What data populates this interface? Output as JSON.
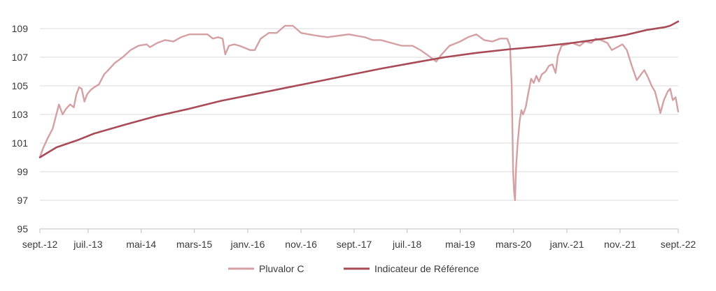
{
  "chart_data": {
    "type": "line",
    "title": "",
    "xlabel": "",
    "ylabel": "",
    "xlim": [
      "2012-09-28",
      "2022-09-30"
    ],
    "ylim": [
      95,
      109
    ],
    "y_ticks": [
      "95",
      "97",
      "99",
      "101",
      "103",
      "105",
      "107",
      "109"
    ],
    "x_ticks": [
      {
        "date": "2012-09-28",
        "label": "sept.-12"
      },
      {
        "date": "2013-07-01",
        "label": "juil.-13"
      },
      {
        "date": "2014-05-01",
        "label": "mai-14"
      },
      {
        "date": "2015-03-01",
        "label": "mars-15"
      },
      {
        "date": "2016-01-01",
        "label": "janv.-16"
      },
      {
        "date": "2016-11-01",
        "label": "nov.-16"
      },
      {
        "date": "2017-09-01",
        "label": "sept.-17"
      },
      {
        "date": "2018-07-01",
        "label": "juil.-18"
      },
      {
        "date": "2019-05-01",
        "label": "mai-19"
      },
      {
        "date": "2020-03-01",
        "label": "mars-20"
      },
      {
        "date": "2021-01-01",
        "label": "janv.-21"
      },
      {
        "date": "2021-11-01",
        "label": "nov.-21"
      },
      {
        "date": "2022-09-30",
        "label": "sept.-22"
      }
    ],
    "grid": "horizontal",
    "legend_position": "bottom",
    "series": [
      {
        "name": "Pluvalor C",
        "color": "#d4a0a4",
        "points": [
          [
            "2012-09-28",
            100.0
          ],
          [
            "2012-10-15",
            100.6
          ],
          [
            "2012-11-10",
            101.3
          ],
          [
            "2012-12-10",
            102.0
          ],
          [
            "2013-01-15",
            103.7
          ],
          [
            "2013-02-05",
            103.0
          ],
          [
            "2013-02-25",
            103.4
          ],
          [
            "2013-03-20",
            103.7
          ],
          [
            "2013-04-10",
            103.5
          ],
          [
            "2013-04-25",
            104.4
          ],
          [
            "2013-05-10",
            104.9
          ],
          [
            "2013-05-25",
            104.8
          ],
          [
            "2013-06-10",
            103.9
          ],
          [
            "2013-06-25",
            104.4
          ],
          [
            "2013-07-15",
            104.7
          ],
          [
            "2013-08-05",
            104.9
          ],
          [
            "2013-09-01",
            105.1
          ],
          [
            "2013-10-01",
            105.8
          ],
          [
            "2013-11-01",
            106.2
          ],
          [
            "2013-12-01",
            106.6
          ],
          [
            "2014-01-15",
            107.0
          ],
          [
            "2014-03-01",
            107.5
          ],
          [
            "2014-04-15",
            107.8
          ],
          [
            "2014-06-01",
            107.9
          ],
          [
            "2014-06-20",
            107.7
          ],
          [
            "2014-08-01",
            108.0
          ],
          [
            "2014-09-15",
            108.2
          ],
          [
            "2014-11-01",
            108.1
          ],
          [
            "2014-12-15",
            108.4
          ],
          [
            "2015-02-01",
            108.6
          ],
          [
            "2015-04-01",
            108.6
          ],
          [
            "2015-05-15",
            108.6
          ],
          [
            "2015-06-15",
            108.3
          ],
          [
            "2015-07-15",
            108.4
          ],
          [
            "2015-08-10",
            108.3
          ],
          [
            "2015-08-25",
            107.2
          ],
          [
            "2015-09-15",
            107.8
          ],
          [
            "2015-10-15",
            107.9
          ],
          [
            "2015-11-15",
            107.8
          ],
          [
            "2016-01-15",
            107.5
          ],
          [
            "2016-02-10",
            107.5
          ],
          [
            "2016-03-15",
            108.3
          ],
          [
            "2016-05-01",
            108.7
          ],
          [
            "2016-06-15",
            108.7
          ],
          [
            "2016-08-01",
            109.2
          ],
          [
            "2016-09-15",
            109.2
          ],
          [
            "2016-11-01",
            108.7
          ],
          [
            "2016-12-15",
            108.6
          ],
          [
            "2017-02-01",
            108.5
          ],
          [
            "2017-04-01",
            108.4
          ],
          [
            "2017-06-01",
            108.5
          ],
          [
            "2017-08-01",
            108.6
          ],
          [
            "2017-09-15",
            108.5
          ],
          [
            "2017-11-01",
            108.4
          ],
          [
            "2017-12-15",
            108.2
          ],
          [
            "2018-02-01",
            108.2
          ],
          [
            "2018-04-01",
            108.0
          ],
          [
            "2018-06-01",
            107.8
          ],
          [
            "2018-08-01",
            107.8
          ],
          [
            "2018-09-15",
            107.5
          ],
          [
            "2018-11-01",
            107.1
          ],
          [
            "2018-12-15",
            106.7
          ],
          [
            "2019-01-15",
            107.2
          ],
          [
            "2019-03-01",
            107.8
          ],
          [
            "2019-05-01",
            108.1
          ],
          [
            "2019-06-15",
            108.4
          ],
          [
            "2019-08-01",
            108.6
          ],
          [
            "2019-09-15",
            108.2
          ],
          [
            "2019-11-01",
            108.1
          ],
          [
            "2019-12-15",
            108.3
          ],
          [
            "2020-01-25",
            108.3
          ],
          [
            "2020-02-10",
            107.8
          ],
          [
            "2020-02-20",
            105.0
          ],
          [
            "2020-02-28",
            99.0
          ],
          [
            "2020-03-05",
            97.5
          ],
          [
            "2020-03-10",
            97.0
          ],
          [
            "2020-03-16",
            99.3
          ],
          [
            "2020-03-25",
            101.0
          ],
          [
            "2020-04-05",
            102.5
          ],
          [
            "2020-04-15",
            103.3
          ],
          [
            "2020-04-25",
            103.0
          ],
          [
            "2020-05-10",
            103.5
          ],
          [
            "2020-05-25",
            104.5
          ],
          [
            "2020-06-10",
            105.5
          ],
          [
            "2020-06-25",
            105.2
          ],
          [
            "2020-07-10",
            105.7
          ],
          [
            "2020-07-25",
            105.3
          ],
          [
            "2020-08-10",
            105.8
          ],
          [
            "2020-09-01",
            106.0
          ],
          [
            "2020-09-20",
            106.4
          ],
          [
            "2020-10-10",
            106.5
          ],
          [
            "2020-10-28",
            105.9
          ],
          [
            "2020-11-10",
            107.1
          ],
          [
            "2020-12-01",
            107.8
          ],
          [
            "2021-01-01",
            107.9
          ],
          [
            "2021-02-01",
            108.0
          ],
          [
            "2021-03-15",
            107.8
          ],
          [
            "2021-04-15",
            108.1
          ],
          [
            "2021-05-20",
            108.0
          ],
          [
            "2021-06-15",
            108.3
          ],
          [
            "2021-07-15",
            108.2
          ],
          [
            "2021-08-20",
            108.0
          ],
          [
            "2021-09-15",
            107.5
          ],
          [
            "2021-10-15",
            107.7
          ],
          [
            "2021-11-15",
            107.9
          ],
          [
            "2021-12-10",
            107.5
          ],
          [
            "2022-01-10",
            106.3
          ],
          [
            "2022-02-05",
            105.4
          ],
          [
            "2022-03-01",
            105.8
          ],
          [
            "2022-03-20",
            106.1
          ],
          [
            "2022-04-10",
            105.6
          ],
          [
            "2022-05-01",
            105.0
          ],
          [
            "2022-05-20",
            104.6
          ],
          [
            "2022-06-10",
            103.6
          ],
          [
            "2022-06-20",
            103.1
          ],
          [
            "2022-07-10",
            104.0
          ],
          [
            "2022-08-01",
            104.6
          ],
          [
            "2022-08-15",
            104.8
          ],
          [
            "2022-08-30",
            104.0
          ],
          [
            "2022-09-15",
            104.2
          ],
          [
            "2022-09-30",
            103.2
          ]
        ]
      },
      {
        "name": "Indicateur de Référence",
        "color": "#a94b57",
        "points": [
          [
            "2012-09-28",
            100.0
          ],
          [
            "2013-01-01",
            100.7
          ],
          [
            "2013-05-01",
            101.2
          ],
          [
            "2013-08-01",
            101.65
          ],
          [
            "2014-02-01",
            102.3
          ],
          [
            "2014-08-01",
            102.9
          ],
          [
            "2015-02-01",
            103.4
          ],
          [
            "2015-08-01",
            103.95
          ],
          [
            "2016-02-01",
            104.4
          ],
          [
            "2016-08-01",
            104.85
          ],
          [
            "2017-02-01",
            105.3
          ],
          [
            "2017-08-01",
            105.75
          ],
          [
            "2018-02-01",
            106.2
          ],
          [
            "2018-08-01",
            106.6
          ],
          [
            "2019-02-01",
            107.0
          ],
          [
            "2019-08-01",
            107.3
          ],
          [
            "2020-02-01",
            107.55
          ],
          [
            "2020-08-01",
            107.75
          ],
          [
            "2021-02-01",
            108.0
          ],
          [
            "2021-08-01",
            108.3
          ],
          [
            "2021-12-01",
            108.55
          ],
          [
            "2022-04-01",
            108.9
          ],
          [
            "2022-07-15",
            109.1
          ],
          [
            "2022-08-15",
            109.2
          ],
          [
            "2022-09-30",
            109.5
          ]
        ]
      }
    ]
  }
}
